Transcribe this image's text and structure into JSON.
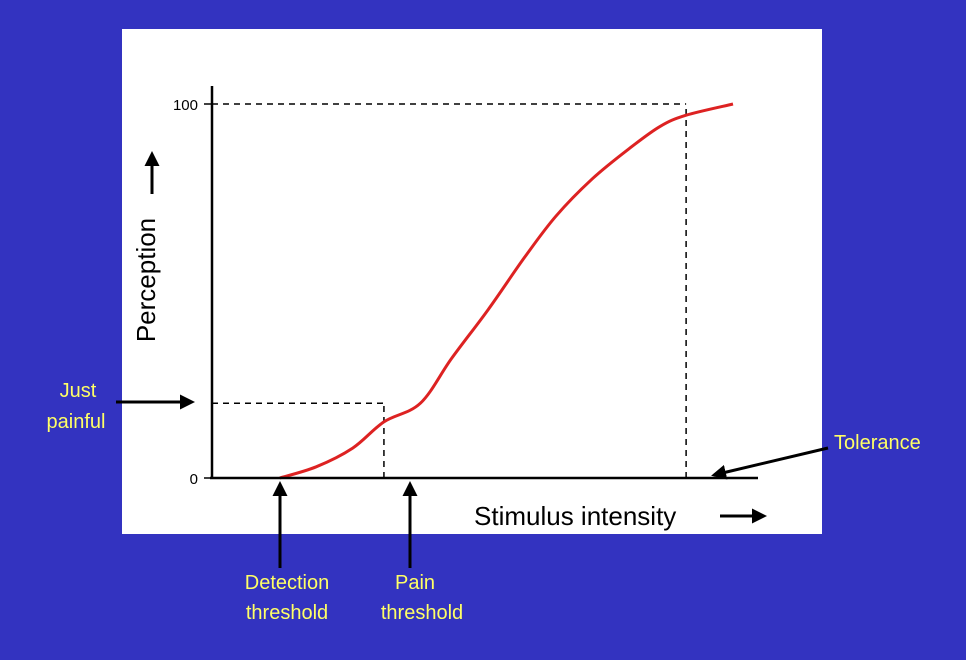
{
  "colors": {
    "background": "#3333c0",
    "panel": "#ffffff",
    "curve": "#dd2222",
    "annotation_text": "#ffff66",
    "axis": "#000000"
  },
  "chart_data": {
    "type": "line",
    "xlabel": "Stimulus intensity",
    "ylabel": "Perception",
    "ylim": [
      0,
      100
    ],
    "y_ticks": [
      "0",
      "100"
    ],
    "xlim": [
      0,
      100
    ],
    "grid": false,
    "series": [
      {
        "color": "#dd2222",
        "shape": "sigmoid",
        "x": [
          13,
          20,
          27,
          33,
          40,
          46,
          53,
          60,
          66,
          73,
          80,
          86,
          91,
          100
        ],
        "y": [
          0,
          3,
          8,
          15,
          20,
          32,
          45,
          59,
          70,
          80,
          88,
          94,
          97,
          100
        ]
      }
    ],
    "reference_lines": [
      {
        "from": [
          33,
          0
        ],
        "to": [
          33,
          20
        ],
        "style": "dashed"
      },
      {
        "from": [
          0,
          20
        ],
        "to": [
          33,
          20
        ],
        "style": "dashed"
      },
      {
        "from": [
          0,
          100
        ],
        "to": [
          91,
          100
        ],
        "style": "dashed"
      },
      {
        "from": [
          91,
          0
        ],
        "to": [
          91,
          100
        ],
        "style": "dashed"
      }
    ],
    "annotations": {
      "just_painful": [
        "Just",
        "painful"
      ],
      "tolerance": "Tolerance",
      "detection_threshold": [
        "Detection",
        "threshold"
      ],
      "pain_threshold": [
        "Pain",
        "threshold"
      ]
    }
  }
}
